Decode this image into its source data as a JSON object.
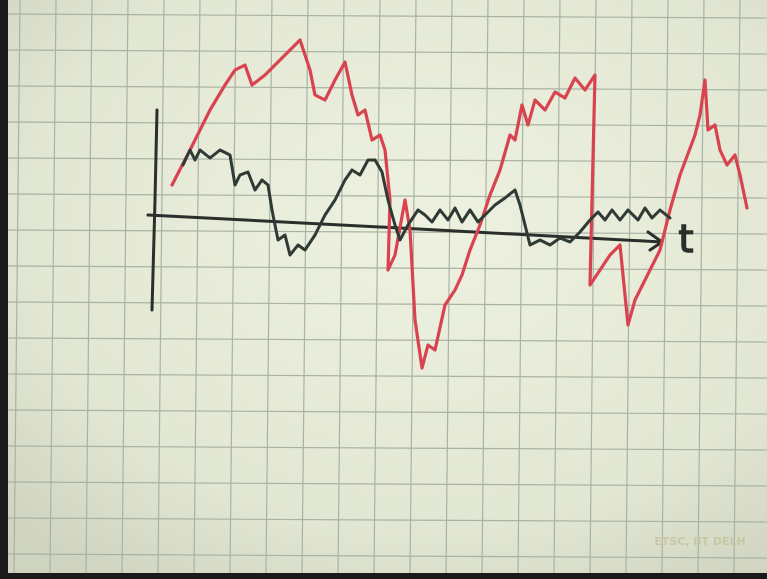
{
  "axis_label": "t",
  "watermark": "ETSC, IIT DELH"
}
